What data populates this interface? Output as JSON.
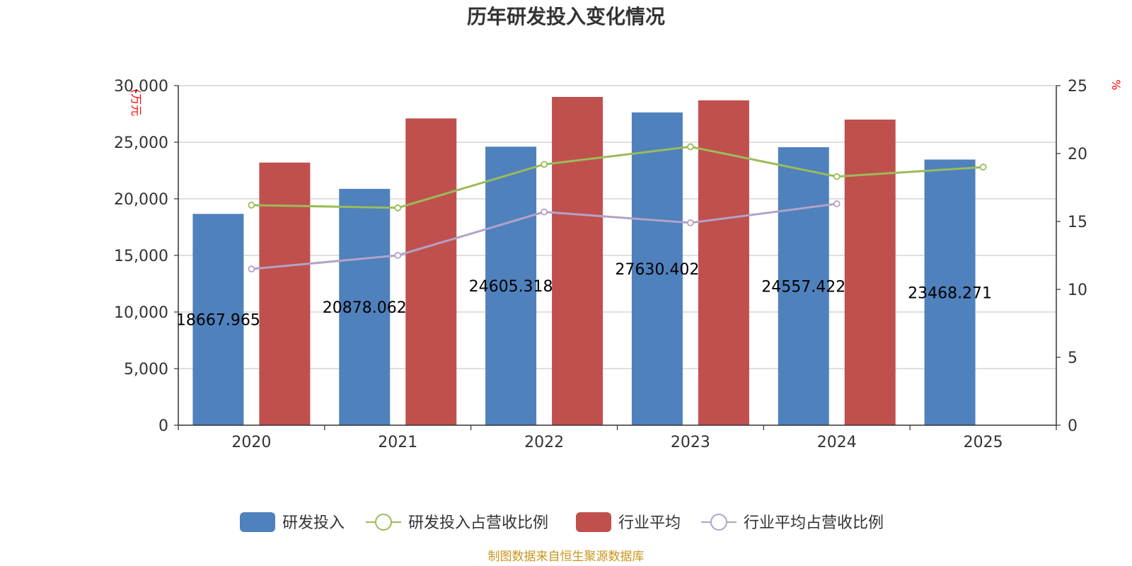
{
  "chart_data": {
    "type": "bar",
    "title": "历年研发投入变化情况",
    "categories": [
      "2020",
      "2021",
      "2022",
      "2023",
      "2024",
      "2025"
    ],
    "y_left": {
      "unit": "(万元",
      "ylim": [
        0,
        30000
      ],
      "ticks": [
        "0",
        "5,000",
        "10,000",
        "15,000",
        "20,000",
        "25,000",
        "30,000"
      ]
    },
    "y_right": {
      "unit": "%",
      "ylim": [
        0,
        25
      ],
      "ticks": [
        "0",
        "5",
        "10",
        "15",
        "20",
        "25"
      ]
    },
    "grid": true,
    "legend_position": "bottom",
    "series": [
      {
        "name": "研发投入",
        "kind": "bar",
        "axis": "left",
        "color": "#4f81bd",
        "values": [
          18667.965,
          20878.062,
          24605.318,
          27630.402,
          24557.422,
          23468.271
        ],
        "labels": [
          "18667.965",
          "20878.062",
          "24605.318",
          "27630.402",
          "24557.422",
          "23468.271"
        ]
      },
      {
        "name": "研发投入占营收比例",
        "kind": "line",
        "axis": "right",
        "color": "#9bbb59",
        "values": [
          16.2,
          16.0,
          19.2,
          20.5,
          18.3,
          19.0
        ]
      },
      {
        "name": "行业平均",
        "kind": "bar",
        "axis": "left",
        "color": "#c0504d",
        "values": [
          23200,
          27100,
          29000,
          28700,
          27000,
          null
        ]
      },
      {
        "name": "行业平均占营收比例",
        "kind": "line",
        "axis": "right",
        "color": "#b3a2c7",
        "values": [
          11.5,
          12.5,
          15.7,
          14.9,
          16.3,
          null
        ]
      }
    ],
    "source": "制图数据来自恒生聚源数据库"
  }
}
